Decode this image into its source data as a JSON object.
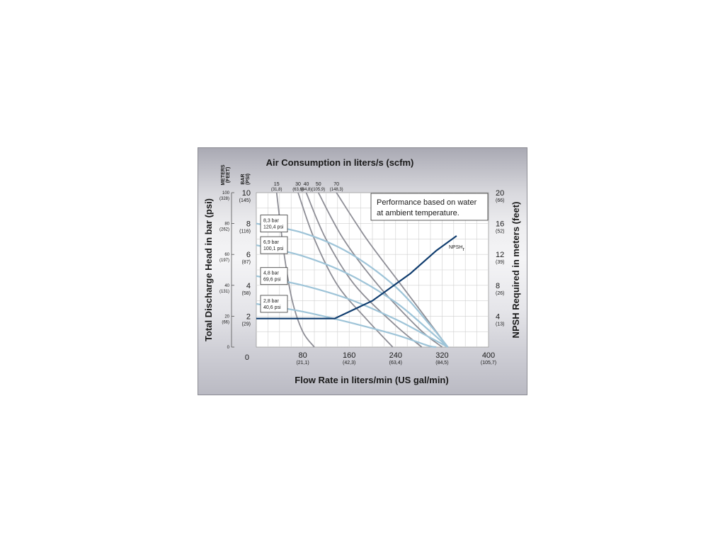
{
  "chart_data": {
    "type": "line",
    "title": "Air Consumption in liters/s (scfm)",
    "xlabel": "Flow Rate in liters/min (US gal/min)",
    "ylabel": "Total Discharge Head in bar (psi)",
    "y2label": "NPSH Required in meters (feet)",
    "xlim": [
      0,
      400
    ],
    "ylim": [
      0,
      10
    ],
    "y2lim": [
      0,
      20
    ],
    "grid": true,
    "note": [
      "Performance based on water",
      "at ambient temperature."
    ],
    "x_ticks": [
      {
        "v": 0,
        "label": "0",
        "sub": ""
      },
      {
        "v": 80,
        "label": "80",
        "sub": "(21,1)"
      },
      {
        "v": 160,
        "label": "160",
        "sub": "(42,3)"
      },
      {
        "v": 240,
        "label": "240",
        "sub": "(63,4)"
      },
      {
        "v": 320,
        "label": "320",
        "sub": "(84,5)"
      },
      {
        "v": 400,
        "label": "400",
        "sub": "(105,7)"
      }
    ],
    "y_ticks": [
      {
        "v": 2,
        "label": "2",
        "sub": "(29)"
      },
      {
        "v": 4,
        "label": "4",
        "sub": "(58)"
      },
      {
        "v": 6,
        "label": "6",
        "sub": "(87)"
      },
      {
        "v": 8,
        "label": "8",
        "sub": "(116)"
      },
      {
        "v": 10,
        "label": "10",
        "sub": "(145)"
      }
    ],
    "y2_ticks": [
      {
        "v": 4,
        "label": "4",
        "sub": "(13)"
      },
      {
        "v": 8,
        "label": "8",
        "sub": "(26)"
      },
      {
        "v": 12,
        "label": "12",
        "sub": "(39)"
      },
      {
        "v": 16,
        "label": "16",
        "sub": "(52)"
      },
      {
        "v": 20,
        "label": "20",
        "sub": "(66)"
      }
    ],
    "meters_axis": {
      "header": [
        "METERS",
        "(FEET)"
      ],
      "ticks": [
        {
          "v": 0,
          "label": "0",
          "sub": ""
        },
        {
          "v": 20,
          "label": "20",
          "sub": "(66)"
        },
        {
          "v": 40,
          "label": "40",
          "sub": "(131)"
        },
        {
          "v": 60,
          "label": "60",
          "sub": "(197)"
        },
        {
          "v": 80,
          "label": "80",
          "sub": "(262)"
        },
        {
          "v": 100,
          "label": "100",
          "sub": "(328)"
        }
      ]
    },
    "bar_header": [
      "BAR",
      "(PSI)"
    ],
    "air_labels": [
      {
        "label": "15",
        "sub": "(31,8)"
      },
      {
        "label": "30",
        "sub": "(63,6)"
      },
      {
        "label": "40",
        "sub": "(84,8)"
      },
      {
        "label": "50",
        "sub": "(105,9)"
      },
      {
        "label": "70",
        "sub": "(148,3)"
      }
    ],
    "air_curves": [
      {
        "name": "15",
        "points": [
          [
            35,
            10
          ],
          [
            48,
            6
          ],
          [
            62,
            3
          ],
          [
            80,
            1
          ],
          [
            100,
            0
          ]
        ]
      },
      {
        "name": "30",
        "points": [
          [
            72,
            10
          ],
          [
            100,
            7
          ],
          [
            140,
            4
          ],
          [
            190,
            1.8
          ],
          [
            235,
            0
          ]
        ]
      },
      {
        "name": "40",
        "points": [
          [
            86,
            10
          ],
          [
            120,
            7
          ],
          [
            170,
            4
          ],
          [
            240,
            1.4
          ],
          [
            285,
            0
          ]
        ]
      },
      {
        "name": "50",
        "points": [
          [
            107,
            10
          ],
          [
            150,
            7
          ],
          [
            210,
            4
          ],
          [
            280,
            1.2
          ],
          [
            320,
            0
          ]
        ]
      },
      {
        "name": "70",
        "points": [
          [
            138,
            10
          ],
          [
            190,
            7
          ],
          [
            250,
            4
          ],
          [
            300,
            1.5
          ],
          [
            330,
            0
          ]
        ]
      }
    ],
    "pressure_labels": [
      {
        "line1": "8,3 bar",
        "line2": "120,4 psi"
      },
      {
        "line1": "6,9 bar",
        "line2": "100,1 psi"
      },
      {
        "line1": "4,8 bar",
        "line2": "69,6 psi"
      },
      {
        "line1": "2,8 bar",
        "line2": "40,6 psi"
      }
    ],
    "pressure_curves": [
      {
        "name": "8,3 bar",
        "points": [
          [
            0,
            8.0
          ],
          [
            80,
            7.4
          ],
          [
            160,
            6.1
          ],
          [
            240,
            3.9
          ],
          [
            300,
            1.4
          ],
          [
            330,
            0
          ]
        ]
      },
      {
        "name": "6,9 bar",
        "points": [
          [
            0,
            6.6
          ],
          [
            80,
            5.9
          ],
          [
            160,
            4.7
          ],
          [
            240,
            2.9
          ],
          [
            300,
            1.0
          ],
          [
            330,
            0
          ]
        ]
      },
      {
        "name": "4,8 bar",
        "points": [
          [
            0,
            4.6
          ],
          [
            80,
            4.0
          ],
          [
            160,
            3.1
          ],
          [
            240,
            1.8
          ],
          [
            300,
            0.6
          ],
          [
            330,
            0
          ]
        ]
      },
      {
        "name": "2,8 bar",
        "points": [
          [
            0,
            2.8
          ],
          [
            80,
            2.3
          ],
          [
            160,
            1.6
          ],
          [
            240,
            0.8
          ],
          [
            295,
            0.1
          ],
          [
            310,
            0
          ]
        ]
      }
    ],
    "npsh": {
      "label": "NPSH",
      "label_sub": "r",
      "points": [
        [
          0,
          3.7
        ],
        [
          135,
          3.7
        ],
        [
          200,
          6.0
        ],
        [
          265,
          9.5
        ],
        [
          310,
          12.5
        ],
        [
          345,
          14.4
        ]
      ]
    }
  }
}
